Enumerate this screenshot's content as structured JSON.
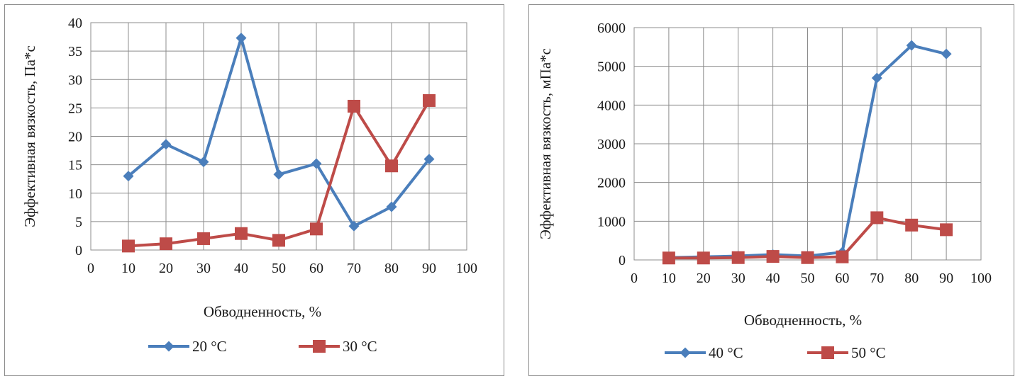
{
  "chart_data": [
    {
      "type": "line",
      "ylabel": "Эффективная вязкость,  Па*с",
      "xlabel": "Обводненность,  %",
      "xlim": [
        0,
        100
      ],
      "ylim": [
        0,
        40
      ],
      "xticks": [
        "0",
        "10",
        "20",
        "30",
        "40",
        "50",
        "60",
        "70",
        "80",
        "90",
        "100"
      ],
      "yticks": [
        "0",
        "5",
        "10",
        "15",
        "20",
        "25",
        "30",
        "35",
        "40"
      ],
      "grid": true,
      "legend_position": "bottom",
      "series": [
        {
          "name": "20 °С",
          "color": "#4a7ebb",
          "marker": "diamond",
          "x": [
            10,
            20,
            30,
            40,
            50,
            60,
            70,
            80,
            90
          ],
          "y": [
            13.0,
            18.6,
            15.5,
            37.3,
            13.3,
            15.2,
            4.2,
            7.6,
            16.0
          ]
        },
        {
          "name": "30 °С",
          "color": "#be4b48",
          "marker": "square",
          "x": [
            10,
            20,
            30,
            40,
            50,
            60,
            70,
            80,
            90
          ],
          "y": [
            0.7,
            1.1,
            2.0,
            2.9,
            1.7,
            3.7,
            25.3,
            14.8,
            26.3
          ]
        }
      ]
    },
    {
      "type": "line",
      "ylabel": "Эффективная вязкость,  мПа*с",
      "xlabel": "Обводненность,  %",
      "xlim": [
        0,
        100
      ],
      "ylim": [
        0,
        6000
      ],
      "xticks": [
        "0",
        "10",
        "20",
        "30",
        "40",
        "50",
        "60",
        "70",
        "80",
        "90",
        "100"
      ],
      "yticks": [
        "0",
        "1000",
        "2000",
        "3000",
        "4000",
        "5000",
        "6000"
      ],
      "grid": true,
      "legend_position": "bottom",
      "series": [
        {
          "name": "40 °С",
          "color": "#4a7ebb",
          "marker": "diamond",
          "x": [
            10,
            20,
            30,
            40,
            50,
            60,
            70,
            80,
            90
          ],
          "y": [
            60,
            80,
            100,
            140,
            100,
            200,
            4700,
            5540,
            5320
          ]
        },
        {
          "name": "50 °С",
          "color": "#be4b48",
          "marker": "square",
          "x": [
            10,
            20,
            30,
            40,
            50,
            60,
            70,
            80,
            90
          ],
          "y": [
            50,
            50,
            60,
            90,
            60,
            80,
            1090,
            900,
            780
          ]
        }
      ]
    }
  ]
}
